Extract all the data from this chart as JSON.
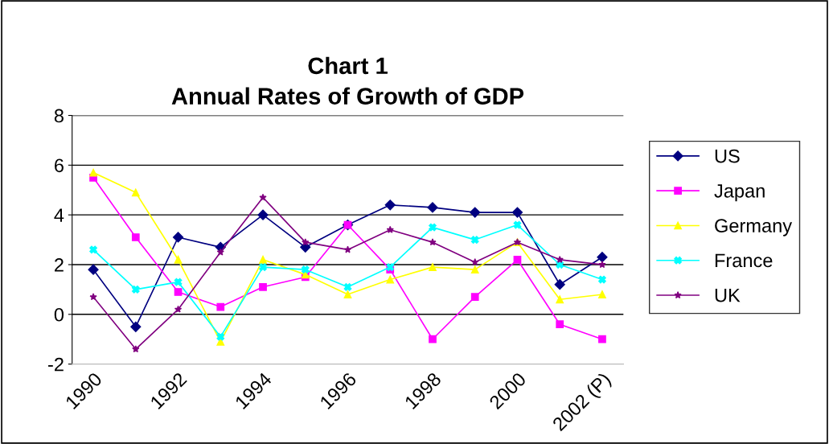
{
  "chart_data": {
    "type": "line",
    "title": "Chart 1\nAnnual Rates of Growth of GDP",
    "categories": [
      "1990",
      null,
      "1992",
      null,
      "1994",
      null,
      "1996",
      null,
      "1998",
      null,
      "2000",
      null,
      "2002 (P)"
    ],
    "series": [
      {
        "name": "US",
        "color": "#000080",
        "marker": "diamond",
        "values": [
          1.8,
          -0.5,
          3.1,
          2.7,
          4.0,
          2.7,
          3.6,
          4.4,
          4.3,
          4.1,
          4.1,
          1.2,
          2.3
        ]
      },
      {
        "name": "Japan",
        "color": "#ff00ff",
        "marker": "square",
        "values": [
          5.5,
          3.1,
          0.9,
          0.3,
          1.1,
          1.5,
          3.6,
          1.8,
          -1.0,
          0.7,
          2.2,
          -0.4,
          -1.0
        ]
      },
      {
        "name": "Germany",
        "color": "#ffff00",
        "marker": "triangle",
        "values": [
          5.7,
          4.9,
          2.2,
          -1.1,
          2.2,
          1.6,
          0.8,
          1.4,
          1.9,
          1.8,
          2.9,
          0.6,
          0.8
        ]
      },
      {
        "name": "France",
        "color": "#00ffff",
        "marker": "cross",
        "values": [
          2.6,
          1.0,
          1.3,
          -0.9,
          1.9,
          1.8,
          1.1,
          1.9,
          3.5,
          3.0,
          3.6,
          2.0,
          1.4
        ]
      },
      {
        "name": "UK",
        "color": "#800080",
        "marker": "star",
        "values": [
          0.7,
          -1.4,
          0.2,
          2.5,
          4.7,
          2.9,
          2.6,
          3.4,
          2.9,
          2.1,
          2.9,
          2.2,
          2.0
        ]
      }
    ],
    "ylim": [
      -2,
      8
    ],
    "yticks": [
      -2,
      0,
      2,
      4,
      6,
      8
    ],
    "grid": "y",
    "legend": "right"
  }
}
